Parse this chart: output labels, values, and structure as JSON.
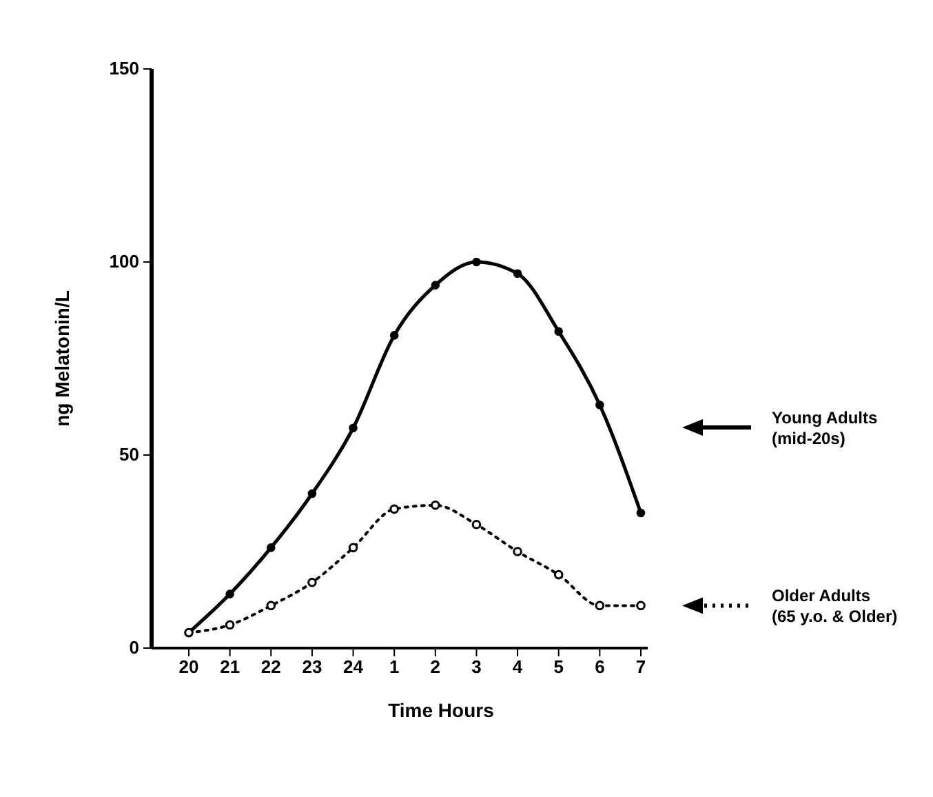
{
  "chart_data": {
    "type": "line",
    "xlabel": "Time Hours",
    "ylabel": "ng Melatonin/L",
    "categories": [
      "20",
      "21",
      "22",
      "23",
      "24",
      "1",
      "2",
      "3",
      "4",
      "5",
      "6",
      "7"
    ],
    "ylim": [
      0,
      150
    ],
    "yticks": [
      0,
      50,
      100,
      150
    ],
    "grid": false,
    "legend": "right",
    "series": [
      {
        "name": "Young Adults (mid-20s)",
        "color": "#000000",
        "line_style": "solid",
        "marker": "circle",
        "values": [
          4,
          14,
          26,
          40,
          57,
          81,
          94,
          100,
          97,
          82,
          63,
          35
        ]
      },
      {
        "name": "Older Adults (65 y.o. & Older)",
        "color": "#000000",
        "line_style": "dotted",
        "marker": "circle",
        "values": [
          4,
          6,
          11,
          17,
          26,
          36,
          37,
          32,
          25,
          19,
          11,
          11
        ]
      }
    ]
  }
}
